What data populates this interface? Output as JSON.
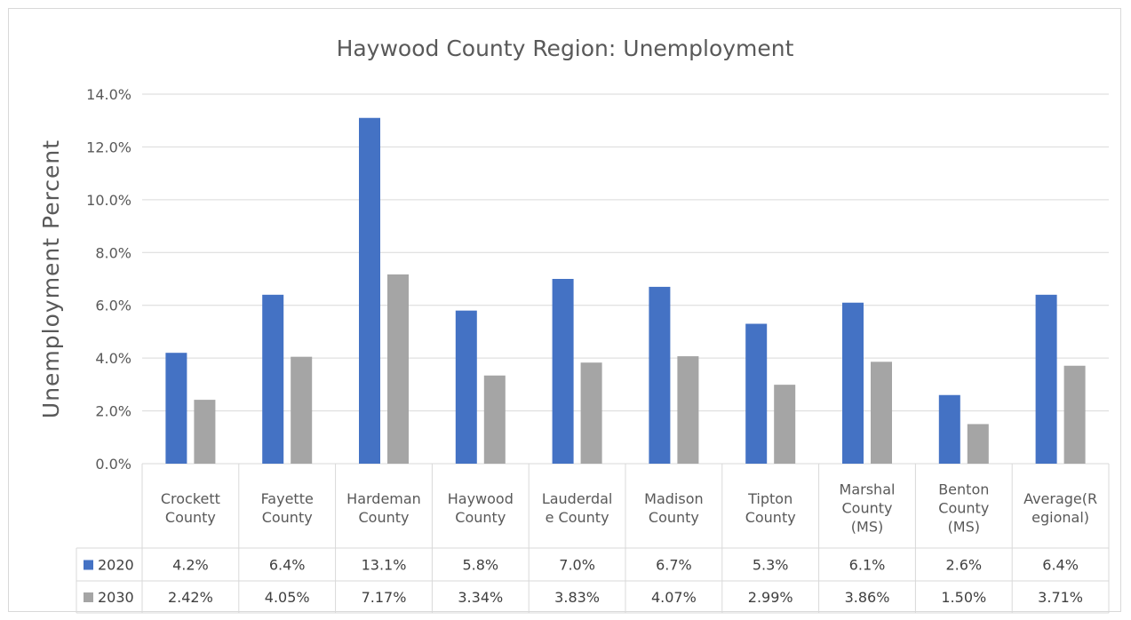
{
  "chart_data": {
    "type": "bar",
    "title": "Haywood County Region: Unemployment",
    "ylabel": "Unemployment Percent",
    "xlabel": "",
    "ylim": [
      0,
      14
    ],
    "y_ticks": [
      "0.0%",
      "2.0%",
      "4.0%",
      "6.0%",
      "8.0%",
      "10.0%",
      "12.0%",
      "14.0%"
    ],
    "grid": true,
    "legend": "data-table",
    "categories": [
      [
        "Crockett",
        "County"
      ],
      [
        "Fayette",
        "County"
      ],
      [
        "Hardeman",
        "County"
      ],
      [
        "Haywood",
        "County"
      ],
      [
        "Lauderdal",
        "e County"
      ],
      [
        "Madison",
        "County"
      ],
      [
        "Tipton",
        "County"
      ],
      [
        "Marshal",
        "County",
        "(MS)"
      ],
      [
        "Benton",
        "County",
        "(MS)"
      ],
      [
        "Average(R",
        "egional)"
      ]
    ],
    "series": [
      {
        "name": "2020",
        "color": "#4472c4",
        "values": [
          4.2,
          6.4,
          13.1,
          5.8,
          7.0,
          6.7,
          5.3,
          6.1,
          2.6,
          6.4
        ],
        "labels": [
          "4.2%",
          "6.4%",
          "13.1%",
          "5.8%",
          "7.0%",
          "6.7%",
          "5.3%",
          "6.1%",
          "2.6%",
          "6.4%"
        ]
      },
      {
        "name": "2030",
        "color": "#a5a5a5",
        "values": [
          2.42,
          4.05,
          7.17,
          3.34,
          3.83,
          4.07,
          2.99,
          3.86,
          1.5,
          3.71
        ],
        "labels": [
          "2.42%",
          "4.05%",
          "7.17%",
          "3.34%",
          "3.83%",
          "4.07%",
          "2.99%",
          "3.86%",
          "1.50%",
          "3.71%"
        ]
      }
    ]
  }
}
